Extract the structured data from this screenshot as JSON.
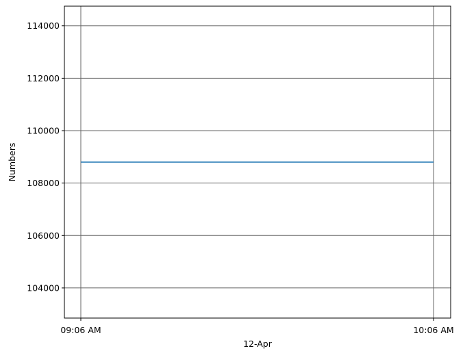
{
  "chart_data": {
    "type": "line",
    "title": "",
    "xlabel": "12-Apr",
    "ylabel": "Numbers",
    "x": [
      "09:06 AM",
      "10:06 AM"
    ],
    "x_ticks": [
      "09:06 AM",
      "10:06 AM"
    ],
    "y_ticks": [
      104000,
      106000,
      108000,
      110000,
      112000,
      114000
    ],
    "ylim": [
      102850,
      114750
    ],
    "grid": true,
    "series": [
      {
        "values": [
          108800,
          108800
        ],
        "color": "#1f77b4"
      }
    ],
    "grid_color": "#666666"
  }
}
